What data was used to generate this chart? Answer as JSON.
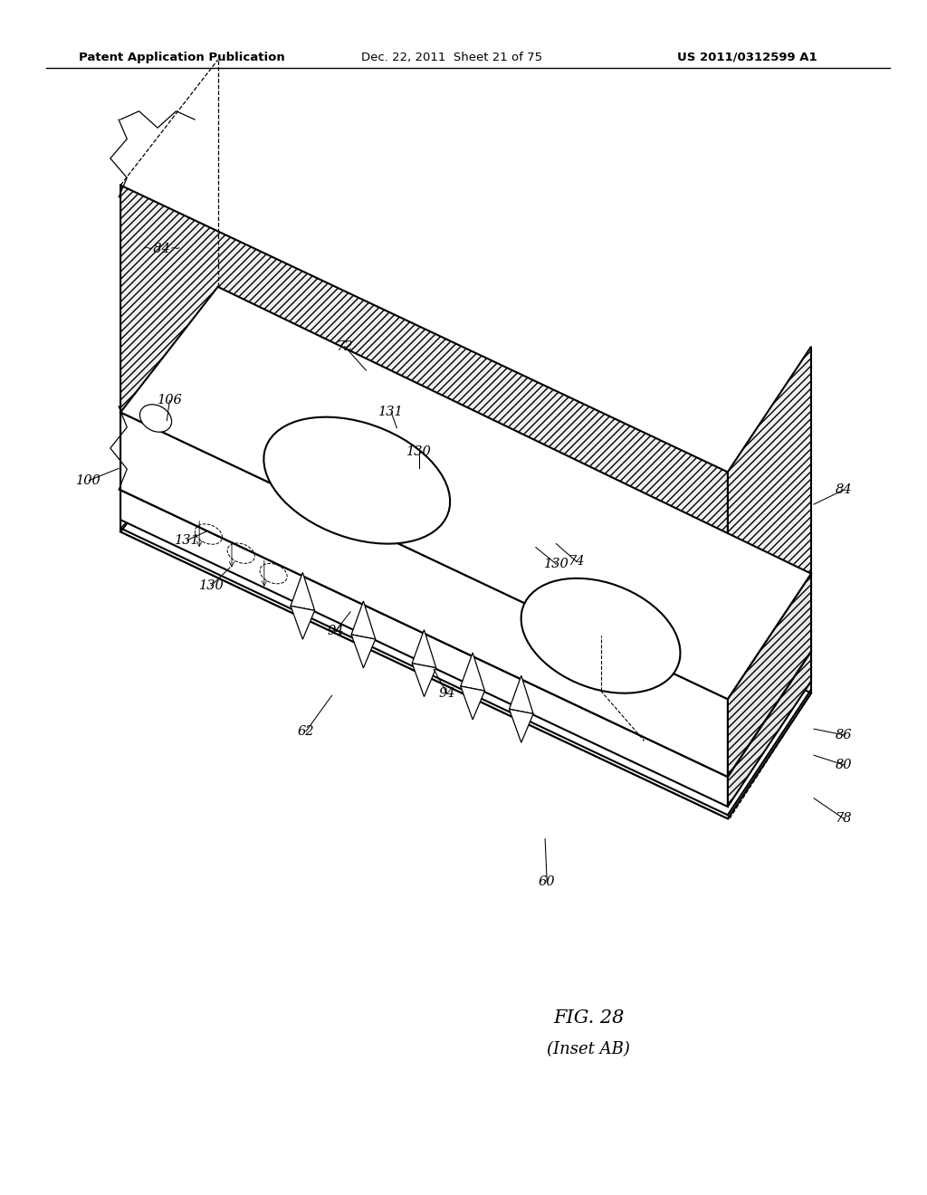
{
  "header_left": "Patent Application Publication",
  "header_mid": "Dec. 22, 2011  Sheet 21 of 75",
  "header_right": "US 2011/0312599 A1",
  "fig_label": "FIG. 28",
  "fig_sublabel": "(Inset AB)",
  "background": "#ffffff",
  "line_color": "#000000"
}
